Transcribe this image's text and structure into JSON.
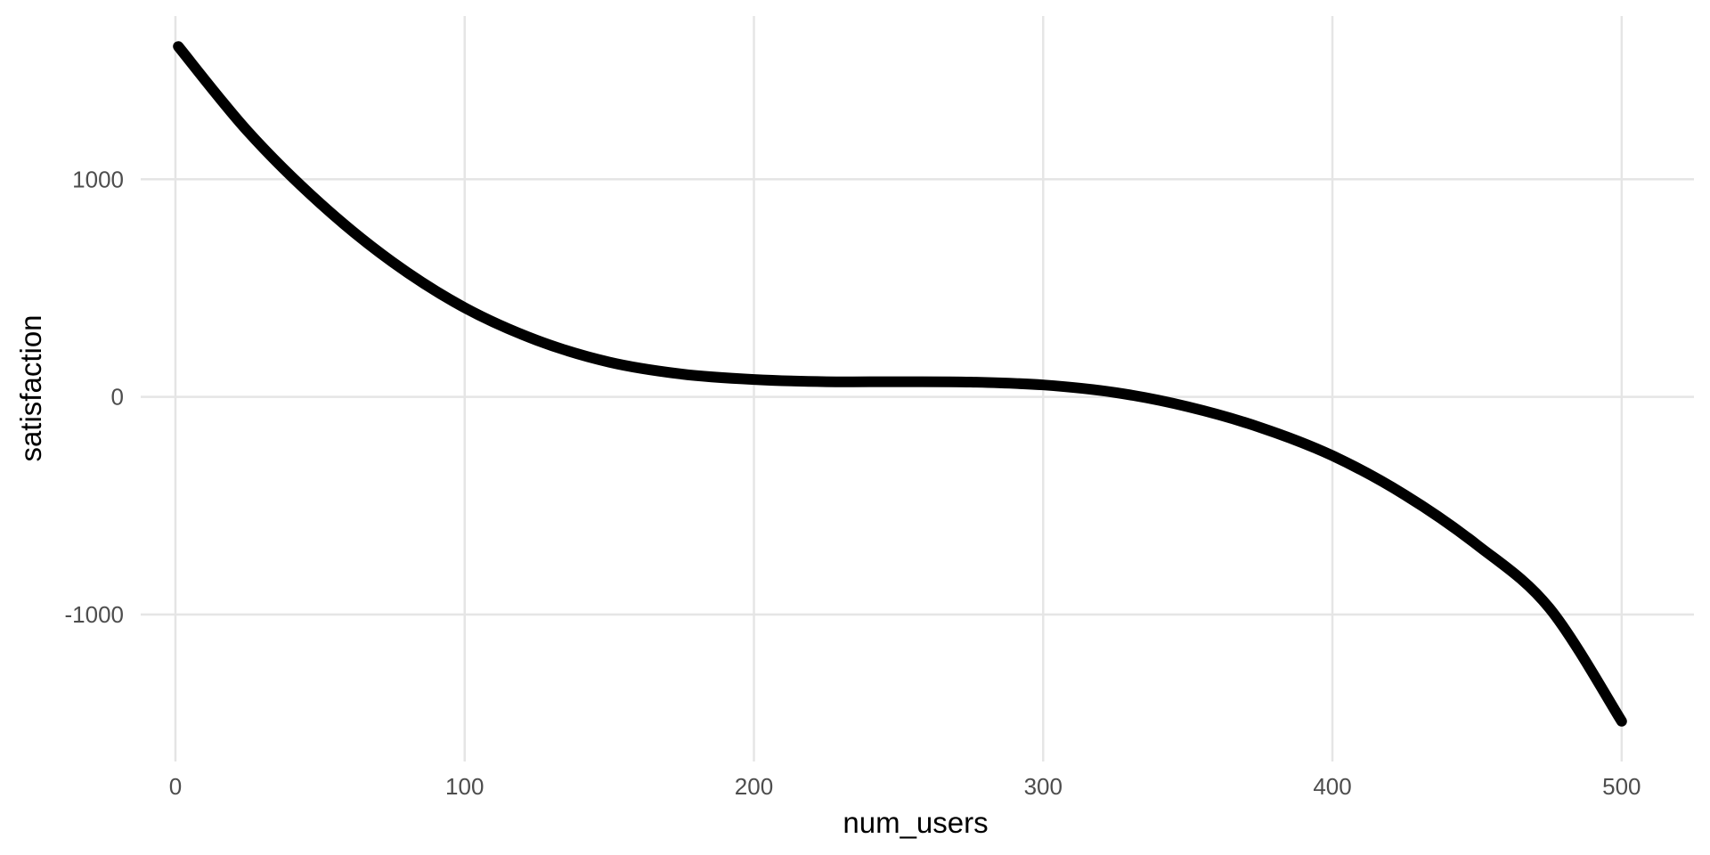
{
  "chart_data": {
    "type": "line",
    "title": "",
    "xlabel": "num_users",
    "ylabel": "satisfaction",
    "xlim": [
      -12,
      525
    ],
    "ylim": [
      -1675,
      1750
    ],
    "x_ticks": [
      0,
      100,
      200,
      300,
      400,
      500
    ],
    "x_tick_labels": [
      "0",
      "100",
      "200",
      "300",
      "400",
      "500"
    ],
    "y_ticks": [
      -1000,
      0,
      1000
    ],
    "y_tick_labels": [
      "-1000",
      "0",
      "1000"
    ],
    "grid": true,
    "legend": "none",
    "series": [
      {
        "name": "satisfaction",
        "color": "#000000",
        "x": [
          1,
          25,
          50,
          75,
          100,
          125,
          150,
          175,
          200,
          225,
          250,
          275,
          300,
          325,
          350,
          375,
          400,
          425,
          450,
          475,
          500
        ],
        "y": [
          1610,
          1220,
          890,
          620,
          410,
          260,
          160,
          105,
          80,
          70,
          70,
          68,
          55,
          20,
          -45,
          -140,
          -270,
          -450,
          -680,
          -970,
          -1490
        ]
      }
    ]
  }
}
